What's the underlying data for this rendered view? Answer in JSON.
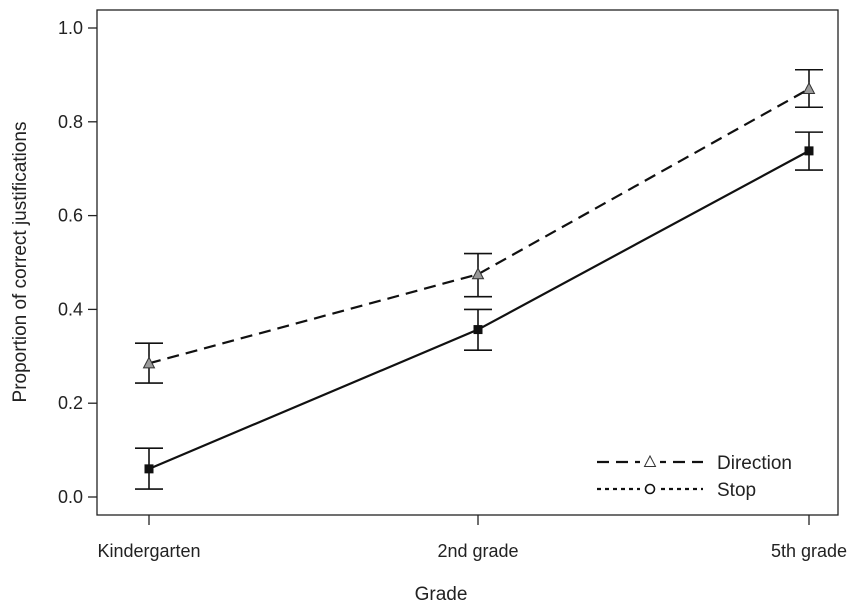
{
  "chart_data": {
    "type": "line",
    "title": "",
    "xlabel": "Grade",
    "ylabel": "Proportion of correct justifications",
    "categories": [
      "Kindergarten",
      "2nd grade",
      "5th grade"
    ],
    "ylim": [
      0.0,
      1.0
    ],
    "yticks": [
      "0.0",
      "0.2",
      "0.4",
      "0.6",
      "0.8",
      "1.0"
    ],
    "grid": false,
    "legend_position": "bottom-right",
    "legend": [
      {
        "label": "Direction",
        "line": "dashed",
        "marker": "triangle"
      },
      {
        "label": "Stop",
        "line": "dotted",
        "marker": "circle"
      }
    ],
    "series": [
      {
        "name": "Direction",
        "line": "dashed",
        "marker": "triangle",
        "marker_fill": "#9a9a9a",
        "values": [
          0.285,
          0.475,
          0.87
        ],
        "err_low": [
          0.243,
          0.427,
          0.831
        ],
        "err_high": [
          0.328,
          0.519,
          0.911
        ]
      },
      {
        "line": "solid",
        "marker": "square",
        "marker_fill": "#111111",
        "values": [
          0.06,
          0.357,
          0.738
        ],
        "err_low": [
          0.017,
          0.313,
          0.697
        ],
        "err_high": [
          0.104,
          0.4,
          0.778
        ]
      }
    ]
  }
}
